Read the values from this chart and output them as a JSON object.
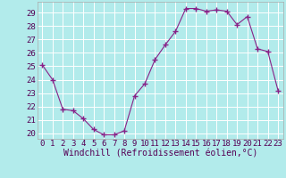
{
  "x": [
    0,
    1,
    2,
    3,
    4,
    5,
    6,
    7,
    8,
    9,
    10,
    11,
    12,
    13,
    14,
    15,
    16,
    17,
    18,
    19,
    20,
    21,
    22,
    23
  ],
  "y": [
    25.1,
    24.0,
    21.8,
    21.7,
    21.1,
    20.3,
    19.9,
    19.9,
    20.2,
    22.8,
    23.7,
    25.5,
    26.6,
    27.6,
    29.3,
    29.3,
    29.1,
    29.2,
    29.1,
    28.1,
    28.7,
    26.3,
    26.1,
    23.2
  ],
  "line_color": "#882288",
  "marker": "+",
  "marker_size": 4,
  "marker_linewidth": 1.0,
  "line_width": 0.8,
  "bg_color": "#b2ebeb",
  "grid_color": "#ffffff",
  "xlabel": "Windchill (Refroidissement éolien,°C)",
  "xlabel_fontsize": 7,
  "yticks": [
    20,
    21,
    22,
    23,
    24,
    25,
    26,
    27,
    28,
    29
  ],
  "xlim": [
    -0.5,
    23.5
  ],
  "ylim": [
    19.6,
    29.8
  ],
  "tick_fontsize": 6.5,
  "spine_color": "#aaaaaa"
}
